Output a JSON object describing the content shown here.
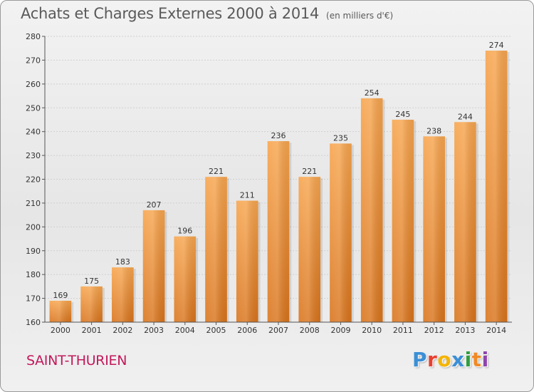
{
  "header": {
    "title": "Achats et Charges Externes 2000 à 2014",
    "subtitle": "(en milliers d'€)"
  },
  "footer": {
    "place": "SAINT-THURIEN",
    "logo": "Proxiti"
  },
  "colors": {
    "bar_light": "#f7a54e",
    "bar_dark": "#d9741c",
    "place": "#c2185b"
  },
  "chart_data": {
    "type": "bar",
    "categories": [
      "2000",
      "2001",
      "2002",
      "2003",
      "2004",
      "2005",
      "2006",
      "2007",
      "2008",
      "2009",
      "2010",
      "2011",
      "2012",
      "2013",
      "2014"
    ],
    "values": [
      169,
      175,
      183,
      207,
      196,
      221,
      211,
      236,
      221,
      235,
      254,
      245,
      238,
      244,
      274
    ],
    "ylim": [
      160,
      280
    ],
    "yticks": [
      160,
      170,
      180,
      190,
      200,
      210,
      220,
      230,
      240,
      250,
      260,
      270,
      280
    ],
    "grid": true,
    "xlabel": "",
    "ylabel": ""
  }
}
